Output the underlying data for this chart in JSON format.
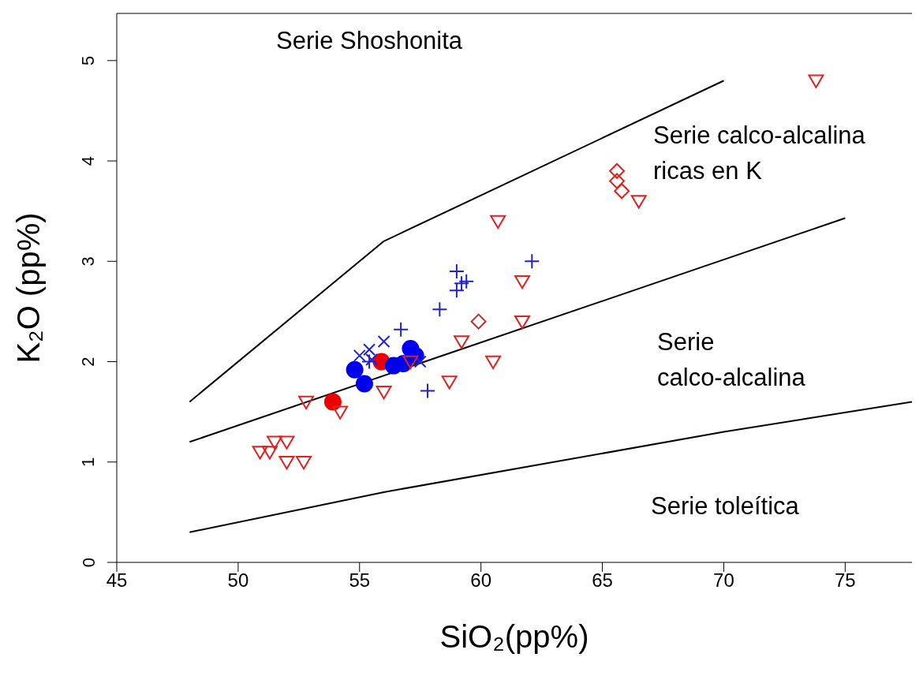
{
  "chart_data": {
    "type": "scatter",
    "xlabel": "SiO₂(pp%)",
    "ylabel": "K₂O (pp%)",
    "xlim": [
      45,
      77.75
    ],
    "ylim": [
      0,
      5.47
    ],
    "xticks": [
      45,
      50,
      55,
      60,
      65,
      70,
      75
    ],
    "yticks": [
      0,
      1,
      2,
      3,
      4,
      5
    ],
    "grid": false,
    "series": [
      {
        "type": "line",
        "color": "#000000",
        "marker": "none",
        "x": [
          48,
          56,
          70
        ],
        "values": [
          1.6,
          3.2,
          4.8
        ]
      },
      {
        "type": "line",
        "color": "#000000",
        "marker": "none",
        "x": [
          48,
          75
        ],
        "values": [
          1.2,
          3.43
        ]
      },
      {
        "type": "line",
        "color": "#000000",
        "marker": "none",
        "x": [
          48,
          56,
          70,
          77.75
        ],
        "values": [
          0.3,
          0.7,
          1.3,
          1.6
        ]
      },
      {
        "color": "#dd2222",
        "marker": "diamond",
        "x": [
          65.6,
          65.6,
          65.8,
          59.9
        ],
        "values": [
          3.9,
          3.8,
          3.7,
          2.4
        ]
      },
      {
        "color": "#ee0000",
        "marker": "circle",
        "x": [
          53.9,
          55.9
        ],
        "values": [
          1.6,
          2.0
        ]
      },
      {
        "color": "#0000ee",
        "marker": "circle",
        "x": [
          54.8,
          55.2,
          56.4,
          57.1,
          57.3,
          56.8
        ],
        "values": [
          1.92,
          1.78,
          1.96,
          2.13,
          2.06,
          1.98
        ]
      },
      {
        "color": "#2222cc",
        "marker": "cross",
        "x": [
          62.1,
          59.0,
          59.4,
          59.2,
          59.0,
          58.3,
          56.7,
          57.8,
          55.4
        ],
        "values": [
          3.0,
          2.9,
          2.8,
          2.78,
          2.71,
          2.52,
          2.32,
          1.71,
          2.0
        ]
      },
      {
        "color": "#2222cc",
        "marker": "x",
        "x": [
          56.0,
          55.4,
          55.0,
          57.5,
          55.5
        ],
        "values": [
          2.2,
          2.12,
          2.06,
          2.0,
          2.02
        ]
      },
      {
        "color": "#dd2222",
        "marker": "triangle",
        "x": [
          73.8,
          66.5,
          60.7,
          61.7,
          61.7,
          59.2,
          60.5,
          58.7,
          56.0,
          57.1,
          54.2,
          52.8,
          50.9,
          51.3,
          51.5,
          52.0,
          52.0,
          52.7
        ],
        "values": [
          4.8,
          3.6,
          3.4,
          2.8,
          2.4,
          2.2,
          2.0,
          1.8,
          1.7,
          2.0,
          1.5,
          1.6,
          1.1,
          1.1,
          1.2,
          1.2,
          1.0,
          1.0
        ]
      }
    ],
    "annotations": [
      "Serie Shoshonita",
      "Serie calco-alcalina\nricas en K",
      "Serie\ncalco-alcalina",
      "Serie toleítica"
    ]
  }
}
